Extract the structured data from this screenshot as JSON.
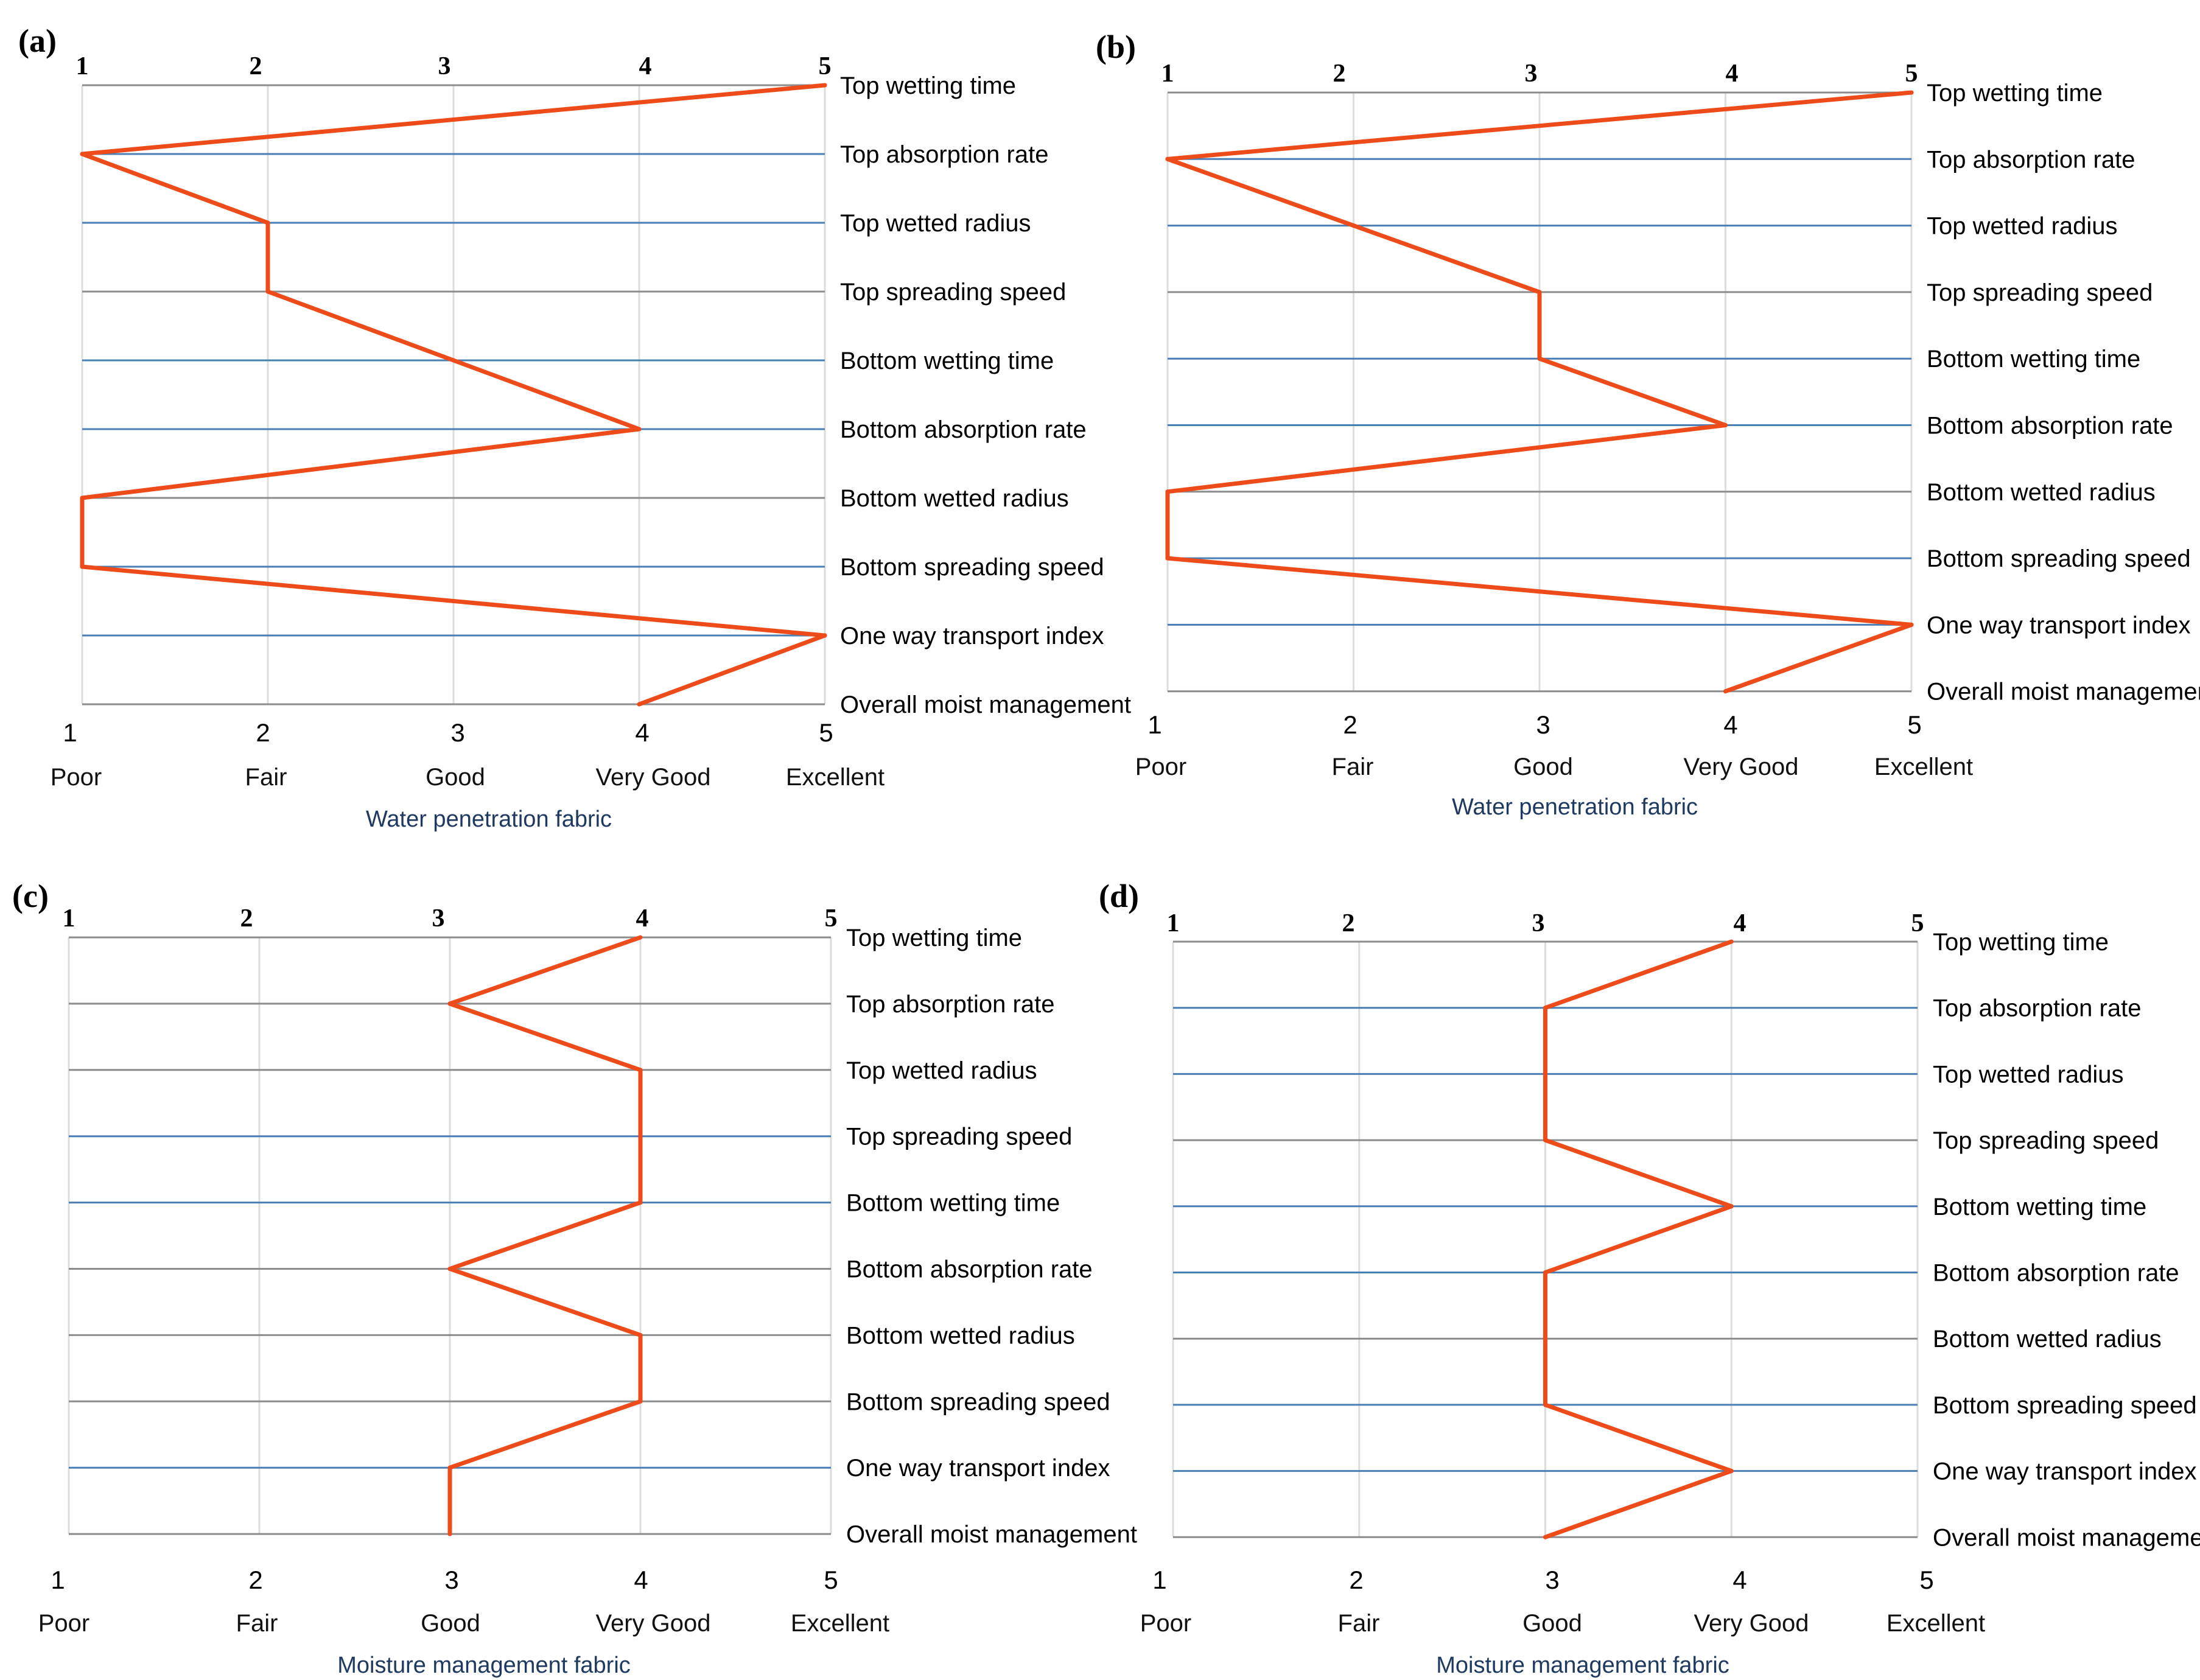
{
  "figure": {
    "colors": {
      "profile": "#ee4b1b",
      "row_line_blue": "#4a7fb5",
      "row_line_gray": "#8c8c8c",
      "vertical_grid": "#dddddd",
      "fabric_label": "#1f3a60"
    },
    "scale_words": [
      "Poor",
      "Fair",
      "Good",
      "Very Good",
      "Excellent"
    ]
  },
  "chart_data": [
    {
      "type": "line",
      "panel": "(a)",
      "fabric": "Water penetration fabric",
      "x": [
        1,
        2,
        3,
        4,
        5
      ],
      "x_labels": [
        "Poor",
        "Fair",
        "Good",
        "Very Good",
        "Excellent"
      ],
      "xlim": [
        1,
        5
      ],
      "categories": [
        "Top wetting time",
        "Top absorption rate",
        "Top wetted radius",
        "Top spreading speed",
        "Bottom wetting time",
        "Bottom absorption rate",
        "Bottom wetted radius",
        "Bottom spreading speed",
        "One way transport index",
        "Overall moist management"
      ],
      "values": [
        5,
        1,
        2,
        2,
        3,
        4,
        1,
        1,
        5,
        4
      ]
    },
    {
      "type": "line",
      "panel": "(b)",
      "fabric": "Water penetration fabric",
      "x": [
        1,
        2,
        3,
        4,
        5
      ],
      "x_labels": [
        "Poor",
        "Fair",
        "Good",
        "Very Good",
        "Excellent"
      ],
      "xlim": [
        1,
        5
      ],
      "categories": [
        "Top wetting time",
        "Top absorption rate",
        "Top wetted radius",
        "Top spreading speed",
        "Bottom wetting time",
        "Bottom absorption rate",
        "Bottom wetted radius",
        "Bottom spreading speed",
        "One way transport index",
        "Overall moist management"
      ],
      "values": [
        5,
        1,
        2,
        3,
        3,
        4,
        1,
        1,
        5,
        4
      ]
    },
    {
      "type": "line",
      "panel": "(c)",
      "fabric": "Moisture management fabric",
      "x": [
        1,
        2,
        3,
        4,
        5
      ],
      "x_labels": [
        "Poor",
        "Fair",
        "Good",
        "Very Good",
        "Excellent"
      ],
      "xlim": [
        1,
        5
      ],
      "categories": [
        "Top wetting time",
        "Top absorption rate",
        "Top wetted radius",
        "Top spreading speed",
        "Bottom wetting time",
        "Bottom absorption rate",
        "Bottom wetted radius",
        "Bottom spreading speed",
        "One way transport index",
        "Overall moist management"
      ],
      "values": [
        4,
        3,
        4,
        4,
        4,
        3,
        4,
        4,
        3,
        3
      ]
    },
    {
      "type": "line",
      "panel": "(d)",
      "fabric": "Moisture management fabric",
      "x": [
        1,
        2,
        3,
        4,
        5
      ],
      "x_labels": [
        "Poor",
        "Fair",
        "Good",
        "Very Good",
        "Excellent"
      ],
      "xlim": [
        1,
        5
      ],
      "categories": [
        "Top wetting time",
        "Top absorption rate",
        "Top wetted radius",
        "Top spreading speed",
        "Bottom wetting time",
        "Bottom absorption rate",
        "Bottom wetted radius",
        "Bottom spreading speed",
        "One way transport index",
        "Overall moist management"
      ],
      "values": [
        4,
        3,
        3,
        3,
        4,
        3,
        3,
        3,
        4,
        3
      ]
    }
  ]
}
